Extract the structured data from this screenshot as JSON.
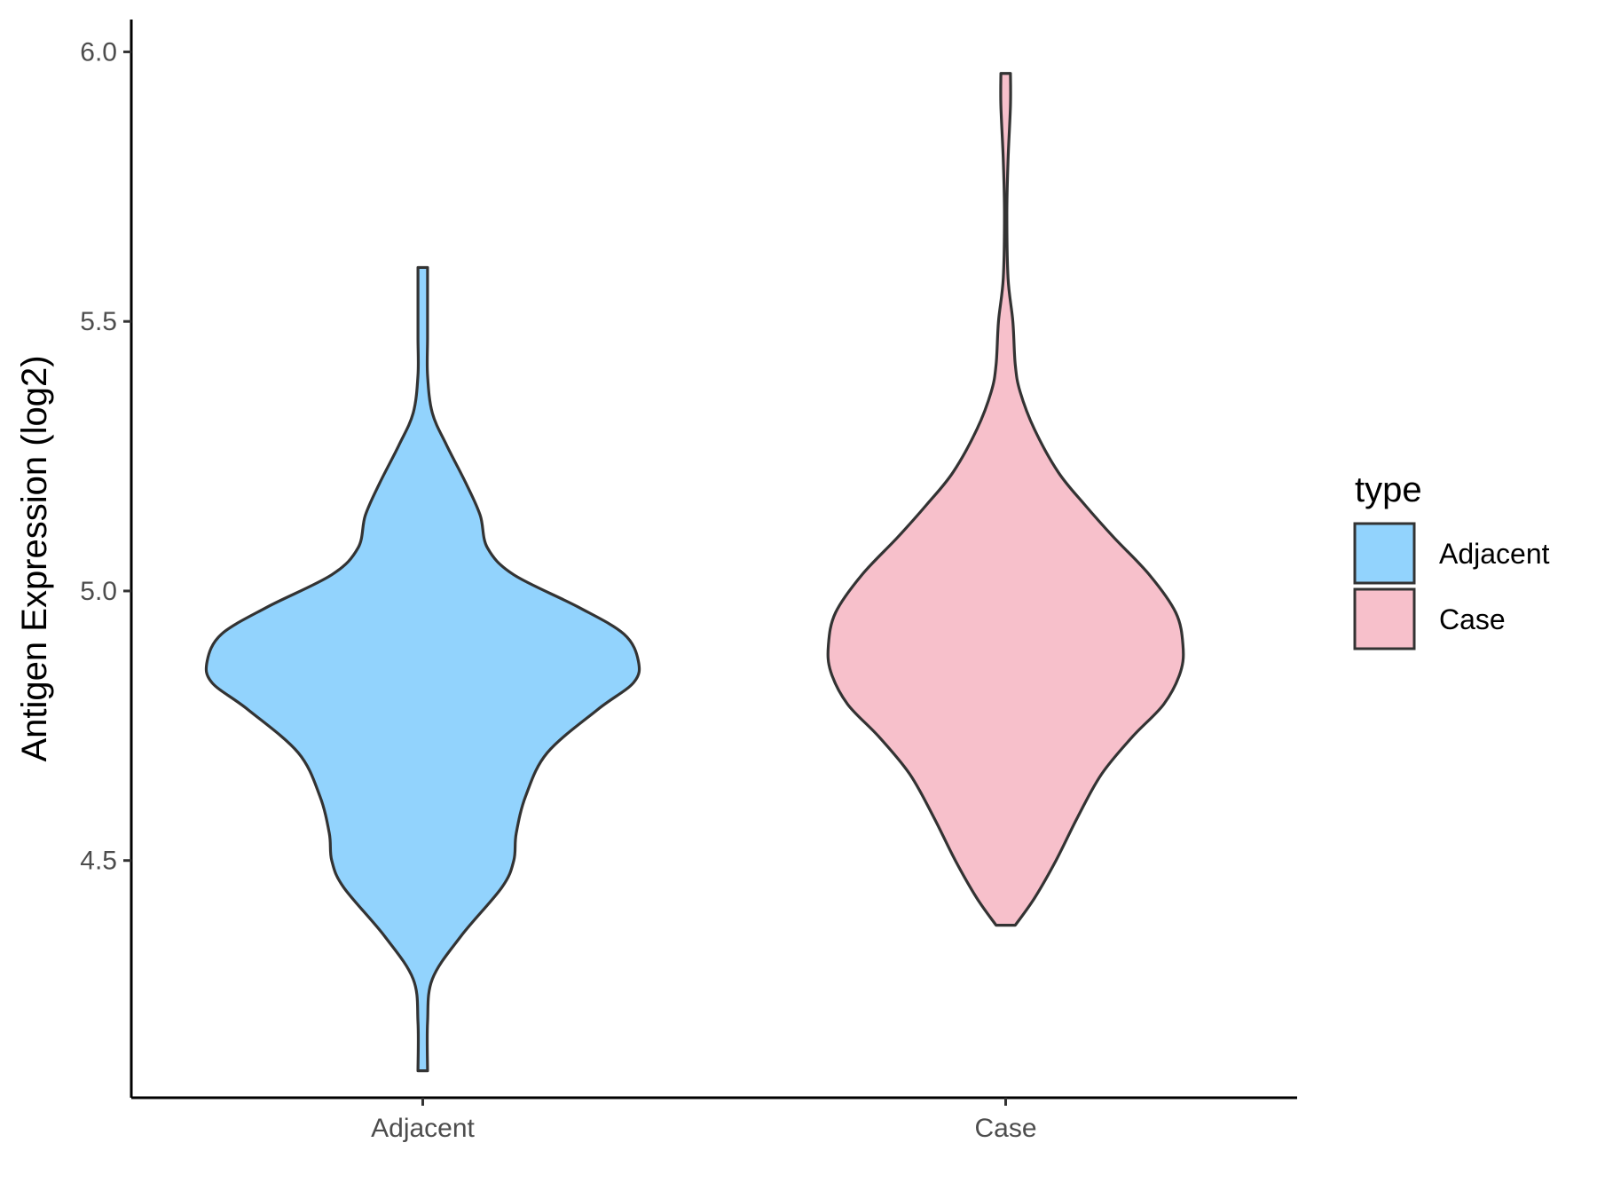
{
  "chart_data": {
    "type": "violin",
    "title": "",
    "xlabel": "",
    "ylabel": "Antigen Expression (log2)",
    "ylim": [
      4.06,
      6.06
    ],
    "y_ticks": [
      "4.5",
      "5.0",
      "5.5",
      "6.0"
    ],
    "y_tick_values": [
      4.5,
      5.0,
      5.5,
      6.0
    ],
    "categories": [
      "Adjacent",
      "Case"
    ],
    "legend": {
      "title": "type",
      "position": "right",
      "items": [
        {
          "label": "Adjacent",
          "color": "#92d3fd"
        },
        {
          "label": "Case",
          "color": "#f7c0cb"
        }
      ]
    },
    "outline_color": "#333333",
    "grid": false,
    "series": [
      {
        "category": "Adjacent",
        "color": "#92d3fd",
        "min": 4.11,
        "max": 5.6,
        "density_profile": [
          [
            4.11,
            0.02
          ],
          [
            4.2,
            0.02
          ],
          [
            4.28,
            0.04
          ],
          [
            4.36,
            0.16
          ],
          [
            4.45,
            0.33
          ],
          [
            4.5,
            0.38
          ],
          [
            4.55,
            0.39
          ],
          [
            4.62,
            0.43
          ],
          [
            4.7,
            0.52
          ],
          [
            4.78,
            0.73
          ],
          [
            4.83,
            0.88
          ],
          [
            4.87,
            0.9
          ],
          [
            4.92,
            0.84
          ],
          [
            4.97,
            0.65
          ],
          [
            5.03,
            0.38
          ],
          [
            5.08,
            0.27
          ],
          [
            5.14,
            0.24
          ],
          [
            5.2,
            0.18
          ],
          [
            5.27,
            0.1
          ],
          [
            5.33,
            0.04
          ],
          [
            5.4,
            0.02
          ],
          [
            5.47,
            0.02
          ],
          [
            5.55,
            0.02
          ],
          [
            5.6,
            0.02
          ]
        ]
      },
      {
        "category": "Case",
        "color": "#f7c0cb",
        "min": 4.38,
        "max": 5.96,
        "density_profile": [
          [
            4.38,
            0.04
          ],
          [
            4.43,
            0.12
          ],
          [
            4.5,
            0.21
          ],
          [
            4.58,
            0.3
          ],
          [
            4.66,
            0.4
          ],
          [
            4.73,
            0.53
          ],
          [
            4.79,
            0.66
          ],
          [
            4.85,
            0.73
          ],
          [
            4.9,
            0.74
          ],
          [
            4.96,
            0.71
          ],
          [
            5.03,
            0.6
          ],
          [
            5.1,
            0.45
          ],
          [
            5.16,
            0.33
          ],
          [
            5.22,
            0.22
          ],
          [
            5.3,
            0.12
          ],
          [
            5.37,
            0.06
          ],
          [
            5.42,
            0.04
          ],
          [
            5.5,
            0.03
          ],
          [
            5.58,
            0.01
          ],
          [
            5.7,
            0.005
          ],
          [
            5.8,
            0.01
          ],
          [
            5.9,
            0.02
          ],
          [
            5.96,
            0.02
          ]
        ]
      }
    ]
  }
}
